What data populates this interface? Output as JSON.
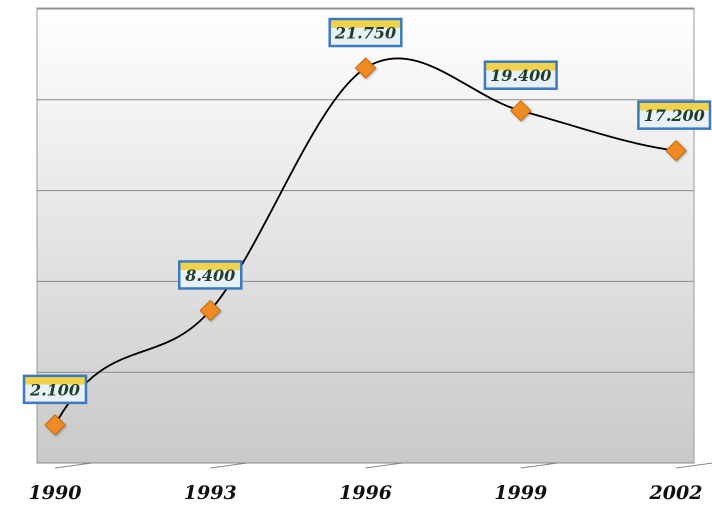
{
  "chart_data": {
    "type": "line",
    "smooth": true,
    "x": [
      "1990",
      "1993",
      "1996",
      "1999",
      "2002"
    ],
    "series": [
      {
        "values": [
          2.1,
          8.4,
          21.75,
          19.4,
          17.2
        ]
      }
    ],
    "data_labels": [
      "2.100",
      "8.400",
      "21.750",
      "19.400",
      "17.200"
    ],
    "x_tick_labels": [
      "1990",
      "1993",
      "1996",
      "1999",
      "2002"
    ],
    "y_tick_labels": [],
    "ylim": [
      0,
      25
    ],
    "grid": "horizontal",
    "legend": "none",
    "title": "",
    "xlabel": "",
    "ylabel": "",
    "colors": {
      "line": "#000000",
      "marker": "#f08a24",
      "label_border": "#3a7abf",
      "label_fill_top": "#f2d24a",
      "label_fill": "#e8f0f8",
      "plot_bg_top": "#ffffff",
      "plot_bg_bottom": "#c9c9c9",
      "gridline": "#8a8a8a"
    }
  }
}
